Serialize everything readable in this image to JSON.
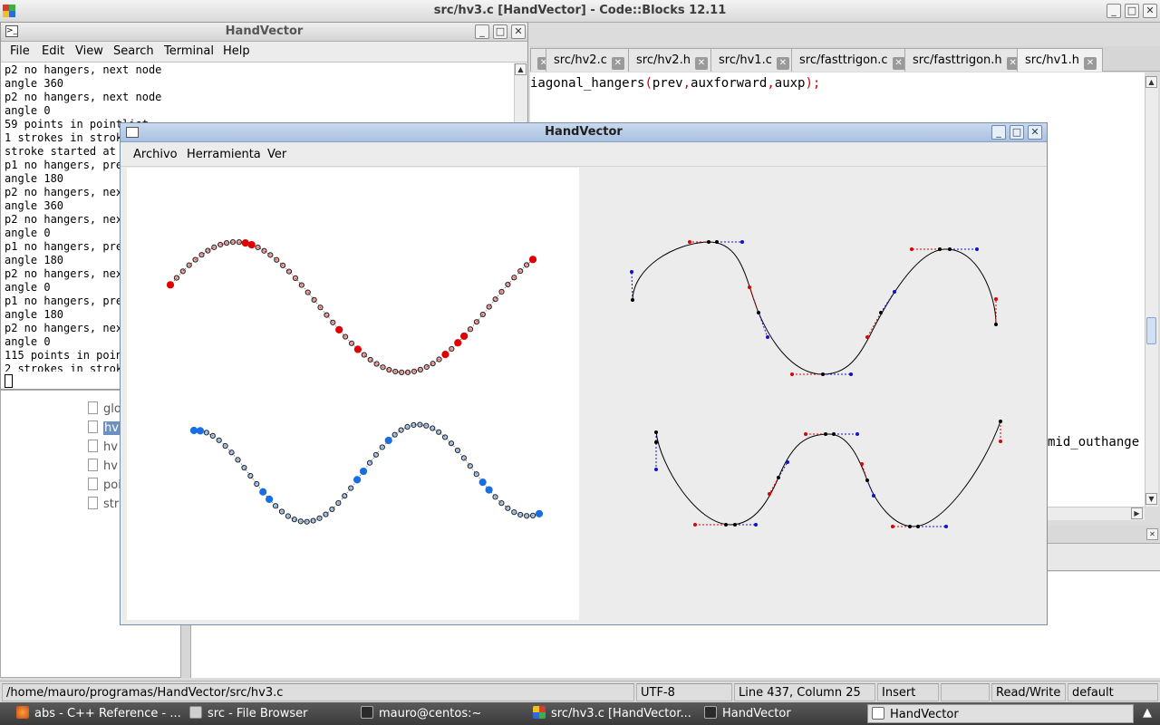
{
  "codeblocks": {
    "title": "src/hv3.c [HandVector] - Code::Blocks 12.11",
    "tabs": [
      "src/hv2.c",
      "src/hv2.h",
      "src/hv1.c",
      "src/fasttrigon.c",
      "src/fasttrigon.h",
      "src/hv1.h"
    ],
    "code": {
      "line1": {
        "fn": "iagonal_hangers",
        "open": "(",
        "args1": "prev",
        "c1": ",",
        "args2": "auxforward",
        "c2": ",",
        "args3": "auxp",
        "close": ");"
      },
      "line2": "mid_outhange"
    },
    "file_tree": [
      "glo",
      "hv",
      "hv",
      "hv",
      "poi",
      "str"
    ],
    "statusbar": {
      "path": "/home/mauro/programas/HandVector/src/hv3.c",
      "encoding": "UTF-8",
      "position": "Line 437, Column 25",
      "mode": "Insert",
      "access": "Read/Write",
      "lang": "default"
    }
  },
  "terminal": {
    "title": "HandVector",
    "menu": [
      "File",
      "Edit",
      "View",
      "Search",
      "Terminal",
      "Help"
    ],
    "output": "p2 no hangers, next node\nangle 360\np2 no hangers, next node\nangle 0\n59 points in pointlist\n1 strokes in strok\nstroke started at\np1 no hangers, pre\nangle 180\np2 no hangers, nex\nangle 360\np2 no hangers, nex\nangle 0\np1 no hangers, pre\nangle 180\np2 no hangers, nex\nangle 0\np1 no hangers, pre\nangle 180\np2 no hangers, nex\nangle 0\n115 points in poin\n2 strokes in strok"
  },
  "handvector": {
    "title": "HandVector",
    "menu": [
      "Archivo",
      "Herramienta",
      "Ver"
    ]
  },
  "taskbar": {
    "items": [
      "abs - C++ Reference - ...",
      "src - File Browser",
      "mauro@centos:~",
      "src/hv3.c [HandVector...",
      "HandVector",
      "HandVector"
    ]
  },
  "colors": {
    "stroke_red": "#e00000",
    "stroke_blue": "#1a6fe0",
    "hanger_in": "#e00000",
    "hanger_out": "#1010d0",
    "selection": "#6d90c0"
  }
}
